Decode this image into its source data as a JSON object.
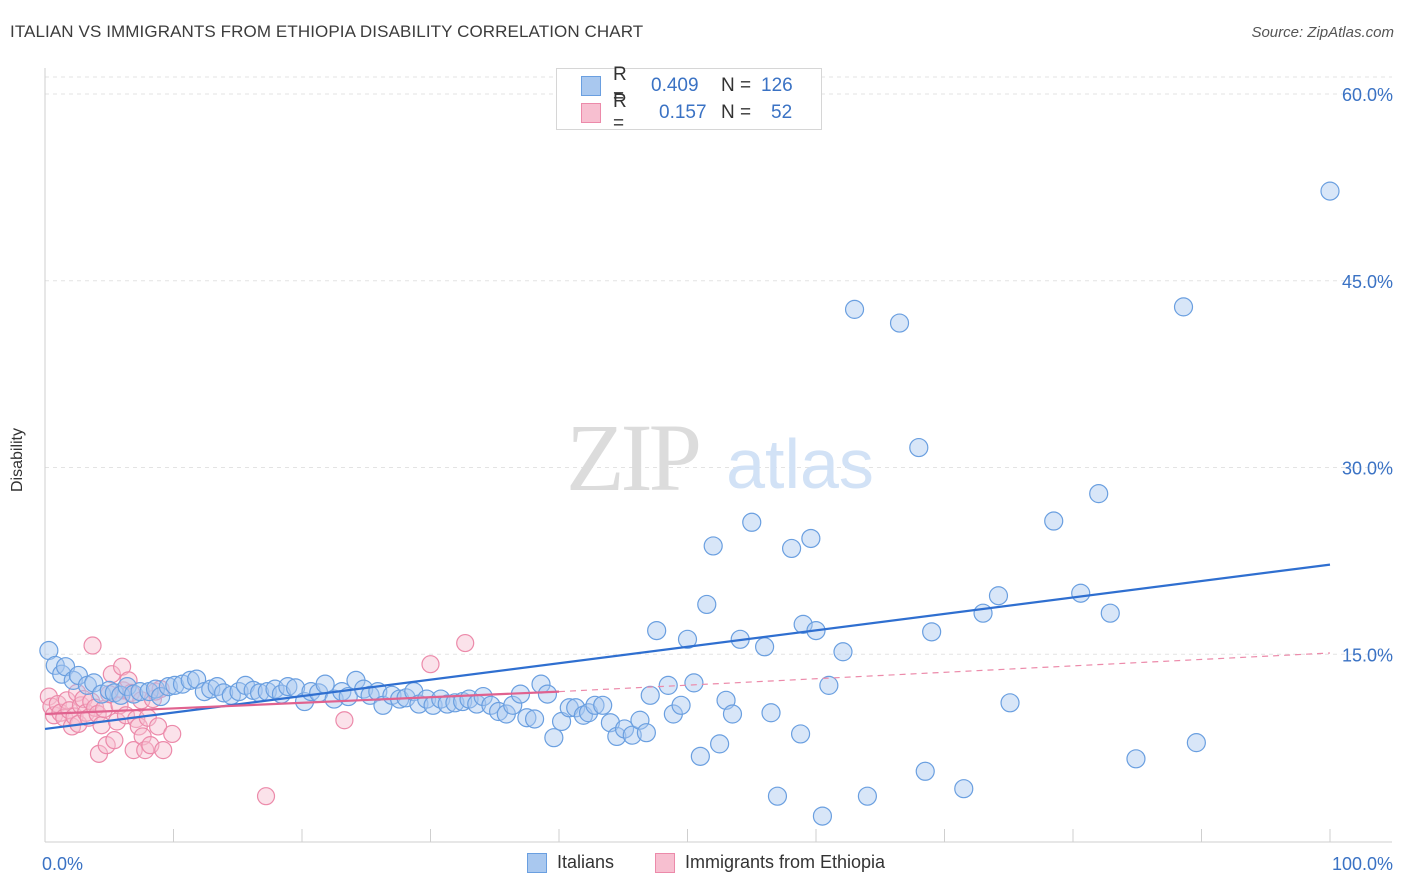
{
  "header": {
    "title": "ITALIAN VS IMMIGRANTS FROM ETHIOPIA DISABILITY CORRELATION CHART",
    "source": "Source: ZipAtlas.com"
  },
  "watermark": {
    "zip": "ZIP",
    "atlas": "atlas"
  },
  "legend_top": [
    {
      "r_label": "R =",
      "r_value": "0.409",
      "n_label": "N =",
      "n_value": "126",
      "color": "#a9c8ef",
      "border": "#6a9fe0"
    },
    {
      "r_label": "R =",
      "r_value": "0.157",
      "n_label": "N =",
      "n_value": "52",
      "color": "#f7bfd0",
      "border": "#ec8aaa"
    }
  ],
  "legend_bottom": [
    {
      "label": "Italians",
      "color": "#a9c8ef",
      "border": "#6a9fe0"
    },
    {
      "label": "Immigrants from Ethiopia",
      "color": "#f7bfd0",
      "border": "#ec8aaa"
    }
  ],
  "chart_data": {
    "type": "scatter",
    "title": "ITALIAN VS IMMIGRANTS FROM ETHIOPIA DISABILITY CORRELATION CHART",
    "xlabel": "",
    "ylabel": "Disability",
    "xlim": [
      0,
      100
    ],
    "ylim": [
      0,
      60
    ],
    "x_tick_labels": [
      "0.0%",
      "100.0%"
    ],
    "y_ticks": [
      15,
      30,
      45,
      60
    ],
    "y_tick_labels": [
      "15.0%",
      "30.0%",
      "45.0%",
      "60.0%"
    ],
    "grid": true,
    "legend_position": "top-center",
    "series": [
      {
        "name": "Italians",
        "color": "#6a9fe0",
        "fill": "#a9c8ef",
        "trend": {
          "x": [
            0,
            100
          ],
          "y": [
            9.0,
            22.2
          ],
          "color": "#2f6fd0"
        },
        "points": [
          [
            0.3,
            15.3
          ],
          [
            0.8,
            14.1
          ],
          [
            1.3,
            13.4
          ],
          [
            1.6,
            14.0
          ],
          [
            2.2,
            12.9
          ],
          [
            2.6,
            13.3
          ],
          [
            3.3,
            12.5
          ],
          [
            3.8,
            12.7
          ],
          [
            4.4,
            11.8
          ],
          [
            5.0,
            12.1
          ],
          [
            5.4,
            11.9
          ],
          [
            5.9,
            11.7
          ],
          [
            6.4,
            12.4
          ],
          [
            6.9,
            11.8
          ],
          [
            7.4,
            12.0
          ],
          [
            8.1,
            12.0
          ],
          [
            8.6,
            12.2
          ],
          [
            9.0,
            11.6
          ],
          [
            9.6,
            12.4
          ],
          [
            10.1,
            12.5
          ],
          [
            10.7,
            12.6
          ],
          [
            11.3,
            12.9
          ],
          [
            11.8,
            13.0
          ],
          [
            12.4,
            12.0
          ],
          [
            12.9,
            12.2
          ],
          [
            13.4,
            12.4
          ],
          [
            13.9,
            11.9
          ],
          [
            14.5,
            11.7
          ],
          [
            15.1,
            12.0
          ],
          [
            15.6,
            12.5
          ],
          [
            16.2,
            12.1
          ],
          [
            16.7,
            11.9
          ],
          [
            17.3,
            12.0
          ],
          [
            17.9,
            12.2
          ],
          [
            18.4,
            11.8
          ],
          [
            18.9,
            12.4
          ],
          [
            19.5,
            12.3
          ],
          [
            20.2,
            11.2
          ],
          [
            20.7,
            12.0
          ],
          [
            21.3,
            11.9
          ],
          [
            21.8,
            12.6
          ],
          [
            22.5,
            11.4
          ],
          [
            23.1,
            12.0
          ],
          [
            23.6,
            11.6
          ],
          [
            24.2,
            12.9
          ],
          [
            24.8,
            12.2
          ],
          [
            25.3,
            11.7
          ],
          [
            25.9,
            12.0
          ],
          [
            26.3,
            10.9
          ],
          [
            27.0,
            11.7
          ],
          [
            27.6,
            11.4
          ],
          [
            28.1,
            11.5
          ],
          [
            28.7,
            12.0
          ],
          [
            29.1,
            11.0
          ],
          [
            29.7,
            11.4
          ],
          [
            30.2,
            10.9
          ],
          [
            30.8,
            11.4
          ],
          [
            31.3,
            11.0
          ],
          [
            31.9,
            11.1
          ],
          [
            32.5,
            11.2
          ],
          [
            33.0,
            11.4
          ],
          [
            33.6,
            11.0
          ],
          [
            34.1,
            11.6
          ],
          [
            34.7,
            10.9
          ],
          [
            35.3,
            10.4
          ],
          [
            35.9,
            10.2
          ],
          [
            36.4,
            10.9
          ],
          [
            37.0,
            11.8
          ],
          [
            37.5,
            9.9
          ],
          [
            38.1,
            9.8
          ],
          [
            38.6,
            12.6
          ],
          [
            39.1,
            11.8
          ],
          [
            39.6,
            8.3
          ],
          [
            40.2,
            9.6
          ],
          [
            40.8,
            10.7
          ],
          [
            41.3,
            10.7
          ],
          [
            41.9,
            10.1
          ],
          [
            42.3,
            10.3
          ],
          [
            42.8,
            10.9
          ],
          [
            43.4,
            10.9
          ],
          [
            44.0,
            9.5
          ],
          [
            44.5,
            8.4
          ],
          [
            45.1,
            9.0
          ],
          [
            45.7,
            8.5
          ],
          [
            46.3,
            9.7
          ],
          [
            46.8,
            8.7
          ],
          [
            47.1,
            11.7
          ],
          [
            47.6,
            16.9
          ],
          [
            48.5,
            12.5
          ],
          [
            48.9,
            10.2
          ],
          [
            49.5,
            10.9
          ],
          [
            50.0,
            16.2
          ],
          [
            50.5,
            12.7
          ],
          [
            51.0,
            6.8
          ],
          [
            51.5,
            19.0
          ],
          [
            52.0,
            23.7
          ],
          [
            52.5,
            7.8
          ],
          [
            53.0,
            11.3
          ],
          [
            53.5,
            10.2
          ],
          [
            54.1,
            16.2
          ],
          [
            55.0,
            25.6
          ],
          [
            56.0,
            15.6
          ],
          [
            56.5,
            10.3
          ],
          [
            57.0,
            3.6
          ],
          [
            58.1,
            23.5
          ],
          [
            58.8,
            8.6
          ],
          [
            59.0,
            17.4
          ],
          [
            59.6,
            24.3
          ],
          [
            60.0,
            16.9
          ],
          [
            60.5,
            2.0
          ],
          [
            61.0,
            12.5
          ],
          [
            62.1,
            15.2
          ],
          [
            63.0,
            42.7
          ],
          [
            64.0,
            3.6
          ],
          [
            66.5,
            41.6
          ],
          [
            68.0,
            31.6
          ],
          [
            68.5,
            5.6
          ],
          [
            69.0,
            16.8
          ],
          [
            71.5,
            4.2
          ],
          [
            73.0,
            18.3
          ],
          [
            74.2,
            19.7
          ],
          [
            75.1,
            11.1
          ],
          [
            78.5,
            25.7
          ],
          [
            80.6,
            19.9
          ],
          [
            82.0,
            27.9
          ],
          [
            82.9,
            18.3
          ],
          [
            84.9,
            6.6
          ],
          [
            88.6,
            42.9
          ],
          [
            89.6,
            7.9
          ],
          [
            100.0,
            52.2
          ]
        ]
      },
      {
        "name": "Immigrants from Ethiopia",
        "color": "#ec8aaa",
        "fill": "#f7bfd0",
        "trend": {
          "x": [
            0,
            40
          ],
          "y": [
            10.2,
            12.0
          ],
          "color": "#e0628f"
        },
        "trend_ext": {
          "x": [
            40,
            100
          ],
          "y": [
            12.0,
            15.1
          ],
          "color": "#ec8aaa"
        },
        "points": [
          [
            0.3,
            11.6
          ],
          [
            0.5,
            10.8
          ],
          [
            0.7,
            10.1
          ],
          [
            1.0,
            11.0
          ],
          [
            1.2,
            10.3
          ],
          [
            1.5,
            9.9
          ],
          [
            1.7,
            11.3
          ],
          [
            1.9,
            10.5
          ],
          [
            2.1,
            9.2
          ],
          [
            2.3,
            10.0
          ],
          [
            2.5,
            11.9
          ],
          [
            2.6,
            9.4
          ],
          [
            2.8,
            10.9
          ],
          [
            3.0,
            11.4
          ],
          [
            3.2,
            10.3
          ],
          [
            3.4,
            9.9
          ],
          [
            3.6,
            11.2
          ],
          [
            3.7,
            15.7
          ],
          [
            3.9,
            10.7
          ],
          [
            4.1,
            10.2
          ],
          [
            4.2,
            7.0
          ],
          [
            4.4,
            9.3
          ],
          [
            4.6,
            10.6
          ],
          [
            4.8,
            7.7
          ],
          [
            5.0,
            11.8
          ],
          [
            5.2,
            13.4
          ],
          [
            5.4,
            8.1
          ],
          [
            5.6,
            9.6
          ],
          [
            5.8,
            10.9
          ],
          [
            6.0,
            14.0
          ],
          [
            6.1,
            12.1
          ],
          [
            6.3,
            10.1
          ],
          [
            6.5,
            12.9
          ],
          [
            6.7,
            11.9
          ],
          [
            6.9,
            7.3
          ],
          [
            7.1,
            9.8
          ],
          [
            7.3,
            9.2
          ],
          [
            7.5,
            11.3
          ],
          [
            7.6,
            8.4
          ],
          [
            7.8,
            7.3
          ],
          [
            8.0,
            9.9
          ],
          [
            8.2,
            7.7
          ],
          [
            8.4,
            11.4
          ],
          [
            8.6,
            12.0
          ],
          [
            8.8,
            9.2
          ],
          [
            9.0,
            12.2
          ],
          [
            9.2,
            7.3
          ],
          [
            9.9,
            8.6
          ],
          [
            17.2,
            3.6
          ],
          [
            23.3,
            9.7
          ],
          [
            30.0,
            14.2
          ],
          [
            32.7,
            15.9
          ]
        ]
      }
    ]
  }
}
